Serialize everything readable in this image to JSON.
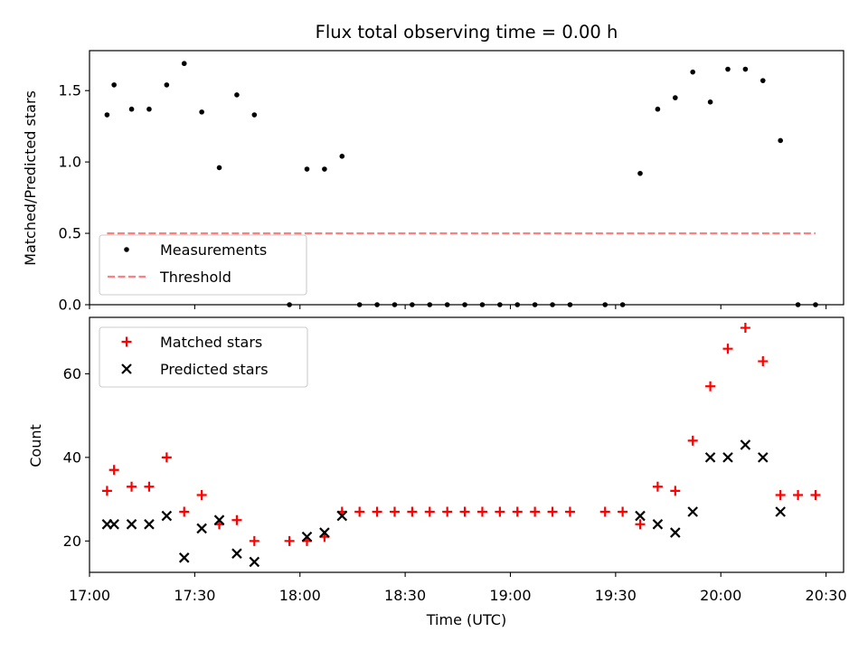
{
  "chart_data": [
    {
      "type": "scatter",
      "title": "Flux total observing time = 0.00 h",
      "xlabel": "",
      "ylabel": "Matched/Predicted stars",
      "ylim": [
        0,
        1.78
      ],
      "yticks": [
        0.0,
        0.5,
        1.0,
        1.5
      ],
      "ytick_labels": [
        "0.0",
        "0.5",
        "1.0",
        "1.5"
      ],
      "xlim": [
        "17:00",
        "20:35"
      ],
      "legend_position": "lower-left",
      "series": [
        {
          "name": "Measurements",
          "style": "dot",
          "color": "#000000",
          "points": [
            [
              "17:05",
              1.33
            ],
            [
              "17:07",
              1.54
            ],
            [
              "17:12",
              1.37
            ],
            [
              "17:17",
              1.37
            ],
            [
              "17:22",
              1.54
            ],
            [
              "17:27",
              1.69
            ],
            [
              "17:32",
              1.35
            ],
            [
              "17:37",
              0.96
            ],
            [
              "17:42",
              1.47
            ],
            [
              "17:47",
              1.33
            ],
            [
              "17:57",
              0.0
            ],
            [
              "18:02",
              0.95
            ],
            [
              "18:07",
              0.95
            ],
            [
              "18:12",
              1.04
            ],
            [
              "18:17",
              0.0
            ],
            [
              "18:22",
              0.0
            ],
            [
              "18:27",
              0.0
            ],
            [
              "18:32",
              0.0
            ],
            [
              "18:37",
              0.0
            ],
            [
              "18:42",
              0.0
            ],
            [
              "18:47",
              0.0
            ],
            [
              "18:52",
              0.0
            ],
            [
              "18:57",
              0.0
            ],
            [
              "19:02",
              0.0
            ],
            [
              "19:07",
              0.0
            ],
            [
              "19:12",
              0.0
            ],
            [
              "19:17",
              0.0
            ],
            [
              "19:27",
              0.0
            ],
            [
              "19:32",
              0.0
            ],
            [
              "19:37",
              0.92
            ],
            [
              "19:42",
              1.37
            ],
            [
              "19:47",
              1.45
            ],
            [
              "19:52",
              1.63
            ],
            [
              "19:57",
              1.42
            ],
            [
              "20:02",
              1.65
            ],
            [
              "20:07",
              1.65
            ],
            [
              "20:12",
              1.57
            ],
            [
              "20:17",
              1.15
            ],
            [
              "20:22",
              0.0
            ],
            [
              "20:27",
              0.0
            ]
          ]
        },
        {
          "name": "Threshold",
          "style": "dashed-line",
          "color": "#ff7f7f",
          "points": [
            [
              "17:05",
              0.5
            ],
            [
              "20:27",
              0.5
            ]
          ]
        }
      ]
    },
    {
      "type": "scatter",
      "title": "",
      "xlabel": "Time (UTC)",
      "ylabel": "Count",
      "ylim": [
        12.5,
        73.5
      ],
      "yticks": [
        20,
        40,
        60
      ],
      "ytick_labels": [
        "20",
        "40",
        "60"
      ],
      "xlim": [
        "17:00",
        "20:35"
      ],
      "xticks": [
        "17:00",
        "17:30",
        "18:00",
        "18:30",
        "19:00",
        "19:30",
        "20:00",
        "20:30"
      ],
      "legend_position": "upper-left",
      "series": [
        {
          "name": "Matched stars",
          "style": "plus",
          "color": "#ff0000",
          "points": [
            [
              "17:05",
              32
            ],
            [
              "17:07",
              37
            ],
            [
              "17:12",
              33
            ],
            [
              "17:17",
              33
            ],
            [
              "17:22",
              40
            ],
            [
              "17:27",
              27
            ],
            [
              "17:32",
              31
            ],
            [
              "17:37",
              24
            ],
            [
              "17:42",
              25
            ],
            [
              "17:47",
              20
            ],
            [
              "17:57",
              20
            ],
            [
              "18:02",
              20
            ],
            [
              "18:07",
              21
            ],
            [
              "18:12",
              27
            ],
            [
              "18:17",
              27
            ],
            [
              "18:22",
              27
            ],
            [
              "18:27",
              27
            ],
            [
              "18:32",
              27
            ],
            [
              "18:37",
              27
            ],
            [
              "18:42",
              27
            ],
            [
              "18:47",
              27
            ],
            [
              "18:52",
              27
            ],
            [
              "18:57",
              27
            ],
            [
              "19:02",
              27
            ],
            [
              "19:07",
              27
            ],
            [
              "19:12",
              27
            ],
            [
              "19:17",
              27
            ],
            [
              "19:27",
              27
            ],
            [
              "19:32",
              27
            ],
            [
              "19:37",
              24
            ],
            [
              "19:42",
              33
            ],
            [
              "19:47",
              32
            ],
            [
              "19:52",
              44
            ],
            [
              "19:57",
              57
            ],
            [
              "20:02",
              66
            ],
            [
              "20:07",
              71
            ],
            [
              "20:12",
              63
            ],
            [
              "20:17",
              31
            ],
            [
              "20:22",
              31
            ],
            [
              "20:27",
              31
            ]
          ]
        },
        {
          "name": "Predicted stars",
          "style": "x",
          "color": "#000000",
          "points": [
            [
              "17:05",
              24
            ],
            [
              "17:07",
              24
            ],
            [
              "17:12",
              24
            ],
            [
              "17:17",
              24
            ],
            [
              "17:22",
              26
            ],
            [
              "17:27",
              16
            ],
            [
              "17:32",
              23
            ],
            [
              "17:37",
              25
            ],
            [
              "17:42",
              17
            ],
            [
              "17:47",
              15
            ],
            [
              "18:02",
              21
            ],
            [
              "18:07",
              22
            ],
            [
              "18:12",
              26
            ],
            [
              "19:37",
              26
            ],
            [
              "19:42",
              24
            ],
            [
              "19:47",
              22
            ],
            [
              "19:52",
              27
            ],
            [
              "19:57",
              40
            ],
            [
              "20:02",
              40
            ],
            [
              "20:07",
              43
            ],
            [
              "20:12",
              40
            ],
            [
              "20:17",
              27
            ]
          ]
        }
      ]
    }
  ]
}
